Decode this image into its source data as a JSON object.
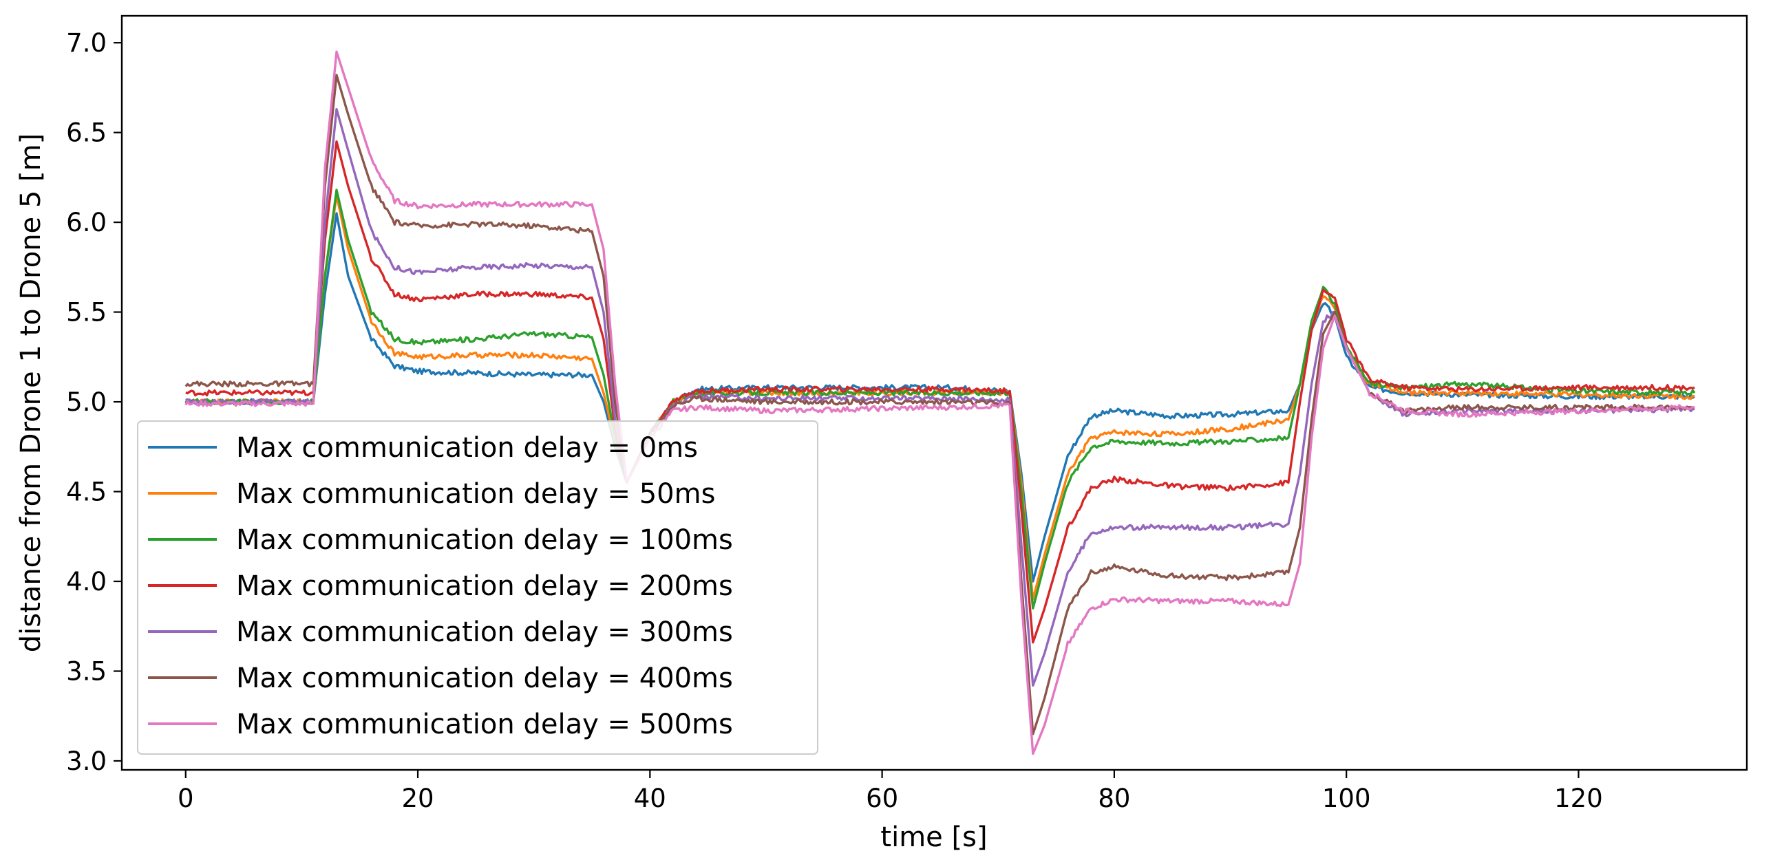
{
  "chart_data": {
    "type": "line",
    "title": "",
    "xlabel": "time [s]",
    "ylabel": "distance from Drone 1 to Drone 5 [m]",
    "xlim": [
      -5.5,
      134.5
    ],
    "ylim": [
      2.95,
      7.15
    ],
    "xticks": [
      0,
      20,
      40,
      60,
      80,
      100,
      120
    ],
    "yticks": [
      3.0,
      3.5,
      4.0,
      4.5,
      5.0,
      5.5,
      6.0,
      6.5,
      7.0
    ],
    "ytick_labels": [
      "3.0",
      "3.5",
      "4.0",
      "4.5",
      "5.0",
      "5.5",
      "6.0",
      "6.5",
      "7.0"
    ],
    "grid": false,
    "legend_position": "lower-left",
    "series": [
      {
        "name": "Max communication delay = 0ms",
        "color": "#1f77b4",
        "x": [
          0,
          11,
          12,
          13,
          14,
          16,
          18,
          20,
          25,
          30,
          35,
          36,
          37,
          38,
          40,
          42,
          44,
          50,
          66,
          71,
          72,
          73,
          74,
          76,
          78,
          80,
          85,
          90,
          95,
          96,
          97,
          98,
          99,
          100,
          102,
          105,
          110,
          120,
          130
        ],
        "y": [
          5.0,
          5.0,
          5.6,
          6.05,
          5.7,
          5.35,
          5.2,
          5.17,
          5.16,
          5.15,
          5.15,
          5.0,
          4.75,
          4.55,
          4.82,
          5.0,
          5.07,
          5.08,
          5.08,
          5.06,
          4.6,
          4.0,
          4.25,
          4.7,
          4.92,
          4.95,
          4.92,
          4.93,
          4.95,
          5.1,
          5.4,
          5.55,
          5.48,
          5.25,
          5.08,
          5.05,
          5.04,
          5.03,
          5.03
        ]
      },
      {
        "name": "Max communication delay = 50ms",
        "color": "#ff7f0e",
        "x": [
          0,
          11,
          12,
          13,
          14,
          16,
          18,
          20,
          25,
          30,
          35,
          36,
          37,
          38,
          40,
          42,
          44,
          50,
          66,
          71,
          72,
          73,
          74,
          76,
          78,
          80,
          85,
          90,
          95,
          96,
          97,
          98,
          99,
          100,
          102,
          105,
          110,
          120,
          130
        ],
        "y": [
          5.0,
          5.0,
          5.7,
          6.15,
          5.85,
          5.45,
          5.27,
          5.25,
          5.26,
          5.26,
          5.24,
          5.05,
          4.78,
          4.55,
          4.82,
          5.0,
          5.05,
          5.05,
          5.05,
          5.05,
          4.55,
          3.9,
          4.15,
          4.6,
          4.8,
          4.83,
          4.82,
          4.85,
          4.9,
          5.1,
          5.4,
          5.6,
          5.52,
          5.3,
          5.1,
          5.05,
          5.05,
          5.04,
          5.03
        ]
      },
      {
        "name": "Max communication delay = 100ms",
        "color": "#2ca02c",
        "x": [
          0,
          11,
          12,
          13,
          14,
          16,
          18,
          20,
          25,
          30,
          35,
          36,
          37,
          38,
          40,
          42,
          44,
          50,
          66,
          71,
          72,
          73,
          74,
          76,
          78,
          80,
          85,
          90,
          95,
          96,
          97,
          98,
          99,
          100,
          102,
          105,
          110,
          120,
          130
        ],
        "y": [
          5.0,
          5.0,
          5.7,
          6.18,
          5.9,
          5.5,
          5.35,
          5.33,
          5.35,
          5.38,
          5.36,
          5.15,
          4.8,
          4.55,
          4.82,
          5.0,
          5.05,
          5.05,
          5.05,
          5.05,
          4.5,
          3.85,
          4.1,
          4.55,
          4.75,
          4.78,
          4.77,
          4.78,
          4.8,
          5.1,
          5.45,
          5.63,
          5.55,
          5.3,
          5.1,
          5.08,
          5.1,
          5.06,
          5.05
        ]
      },
      {
        "name": "Max communication delay = 200ms",
        "color": "#d62728",
        "x": [
          0,
          11,
          12,
          13,
          14,
          16,
          18,
          20,
          25,
          30,
          35,
          36,
          37,
          38,
          40,
          42,
          44,
          50,
          66,
          71,
          72,
          73,
          74,
          76,
          78,
          80,
          85,
          90,
          95,
          96,
          97,
          98,
          99,
          100,
          102,
          105,
          110,
          120,
          130
        ],
        "y": [
          5.05,
          5.05,
          5.9,
          6.45,
          6.2,
          5.8,
          5.6,
          5.57,
          5.6,
          5.6,
          5.58,
          5.35,
          4.85,
          4.55,
          4.82,
          5.0,
          5.06,
          5.07,
          5.07,
          5.06,
          4.4,
          3.66,
          3.85,
          4.3,
          4.52,
          4.57,
          4.53,
          4.52,
          4.55,
          5.0,
          5.4,
          5.62,
          5.58,
          5.35,
          5.12,
          5.08,
          5.07,
          5.08,
          5.08
        ]
      },
      {
        "name": "Max communication delay = 300ms",
        "color": "#9467bd",
        "x": [
          0,
          11,
          12,
          13,
          14,
          16,
          18,
          20,
          25,
          30,
          35,
          36,
          37,
          38,
          40,
          42,
          44,
          50,
          66,
          71,
          72,
          73,
          74,
          76,
          78,
          80,
          85,
          90,
          95,
          96,
          97,
          98,
          99,
          100,
          102,
          105,
          110,
          120,
          130
        ],
        "y": [
          5.0,
          5.0,
          6.0,
          6.63,
          6.4,
          5.95,
          5.75,
          5.72,
          5.75,
          5.76,
          5.75,
          5.5,
          4.9,
          4.55,
          4.82,
          4.98,
          5.03,
          5.02,
          5.02,
          5.01,
          4.2,
          3.42,
          3.6,
          4.05,
          4.27,
          4.3,
          4.3,
          4.3,
          4.32,
          4.6,
          5.1,
          5.45,
          5.5,
          5.3,
          5.05,
          4.93,
          4.95,
          4.95,
          4.96
        ]
      },
      {
        "name": "Max communication delay = 400ms",
        "color": "#8c564b",
        "x": [
          0,
          11,
          12,
          13,
          14,
          16,
          18,
          20,
          25,
          30,
          35,
          36,
          37,
          38,
          40,
          42,
          44,
          50,
          66,
          71,
          72,
          73,
          74,
          76,
          78,
          80,
          85,
          90,
          95,
          96,
          97,
          98,
          99,
          100,
          102,
          105,
          110,
          120,
          130
        ],
        "y": [
          5.1,
          5.1,
          6.2,
          6.82,
          6.6,
          6.2,
          6.0,
          5.98,
          5.99,
          5.98,
          5.95,
          5.7,
          5.0,
          4.55,
          4.82,
          4.98,
          5.02,
          5.0,
          5.0,
          4.99,
          4.0,
          3.15,
          3.35,
          3.85,
          4.05,
          4.08,
          4.03,
          4.02,
          4.05,
          4.3,
          4.9,
          5.38,
          5.5,
          5.3,
          5.05,
          4.95,
          4.97,
          4.97,
          4.97
        ]
      },
      {
        "name": "Max communication delay = 500ms",
        "color": "#e377c2",
        "x": [
          0,
          11,
          12,
          13,
          14,
          16,
          18,
          20,
          25,
          30,
          35,
          36,
          37,
          38,
          40,
          42,
          44,
          50,
          66,
          71,
          72,
          73,
          74,
          76,
          78,
          80,
          85,
          90,
          95,
          96,
          97,
          98,
          99,
          100,
          102,
          105,
          110,
          120,
          130
        ],
        "y": [
          4.99,
          4.99,
          6.3,
          6.95,
          6.75,
          6.35,
          6.12,
          6.09,
          6.1,
          6.1,
          6.1,
          5.85,
          5.1,
          4.55,
          4.8,
          4.95,
          4.97,
          4.95,
          4.97,
          4.98,
          3.9,
          3.04,
          3.2,
          3.65,
          3.85,
          3.9,
          3.89,
          3.89,
          3.87,
          4.1,
          4.8,
          5.3,
          5.48,
          5.3,
          5.05,
          4.95,
          4.93,
          4.95,
          4.97
        ]
      }
    ]
  }
}
